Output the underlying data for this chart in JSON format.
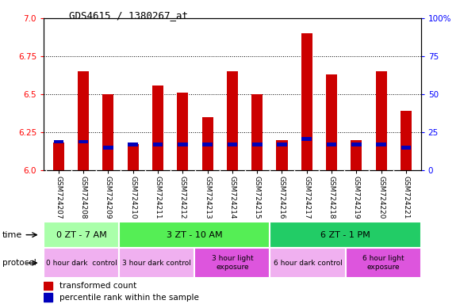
{
  "title": "GDS4615 / 1380267_at",
  "samples": [
    "GSM724207",
    "GSM724208",
    "GSM724209",
    "GSM724210",
    "GSM724211",
    "GSM724212",
    "GSM724213",
    "GSM724214",
    "GSM724215",
    "GSM724216",
    "GSM724217",
    "GSM724218",
    "GSM724219",
    "GSM724220",
    "GSM724221"
  ],
  "transformed_count": [
    6.18,
    6.65,
    6.5,
    6.17,
    6.56,
    6.51,
    6.35,
    6.65,
    6.5,
    6.2,
    6.9,
    6.63,
    6.2,
    6.65,
    6.39
  ],
  "percentile_rank": [
    20,
    20,
    16,
    18,
    18,
    18,
    18,
    18,
    18,
    18,
    22,
    18,
    18,
    18,
    16
  ],
  "ylim_left": [
    6.0,
    7.0
  ],
  "ylim_right": [
    0,
    100
  ],
  "yticks_left": [
    6.0,
    6.25,
    6.5,
    6.75,
    7.0
  ],
  "yticks_right": [
    0,
    25,
    50,
    75,
    100
  ],
  "bar_color": "#cc0000",
  "percentile_color": "#0000bb",
  "base_value": 6.0,
  "time_groups": [
    {
      "label": "0 ZT - 7 AM",
      "start": 0,
      "end": 3,
      "color": "#aaffaa"
    },
    {
      "label": "3 ZT - 10 AM",
      "start": 3,
      "end": 9,
      "color": "#55ee55"
    },
    {
      "label": "6 ZT - 1 PM",
      "start": 9,
      "end": 15,
      "color": "#22cc66"
    }
  ],
  "protocol_groups": [
    {
      "label": "0 hour dark  control",
      "start": 0,
      "end": 3,
      "color": "#f0b0f0"
    },
    {
      "label": "3 hour dark control",
      "start": 3,
      "end": 6,
      "color": "#f0b0f0"
    },
    {
      "label": "3 hour light\nexposure",
      "start": 6,
      "end": 9,
      "color": "#dd55dd"
    },
    {
      "label": "6 hour dark control",
      "start": 9,
      "end": 12,
      "color": "#f0b0f0"
    },
    {
      "label": "6 hour light\nexposure",
      "start": 12,
      "end": 15,
      "color": "#dd55dd"
    }
  ],
  "legend_items": [
    {
      "label": "transformed count",
      "color": "#cc0000"
    },
    {
      "label": "percentile rank within the sample",
      "color": "#0000bb"
    }
  ],
  "bar_width": 0.45
}
